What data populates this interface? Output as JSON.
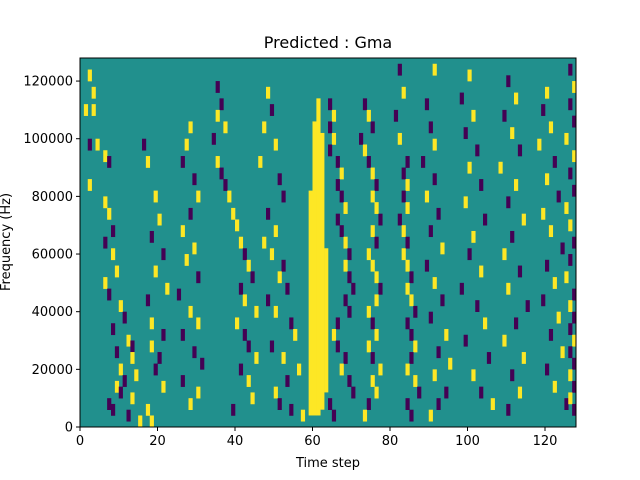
{
  "chart_data": {
    "type": "heatmap",
    "title": "Predicted : Gma",
    "xlabel": "Time step",
    "ylabel": "Frequency (Hz)",
    "xlim": [
      0,
      128
    ],
    "ylim": [
      0,
      128000
    ],
    "xticks": [
      0,
      20,
      40,
      60,
      80,
      100,
      120
    ],
    "yticks": [
      0,
      20000,
      40000,
      60000,
      80000,
      100000,
      120000
    ],
    "grid": false,
    "colormap": "viridis",
    "colors": {
      "background": "#21908d",
      "high": "#fde725",
      "low": "#440154"
    },
    "time_steps": 128,
    "frequency_bins": 64,
    "bin_height_hz": 2000,
    "cells_note": "cells lists [time_step, frequency_bin_index, level]; level 1 = yellow (high), -1 = purple (low); all other cells are the middle (teal) level",
    "band_columns": [
      {
        "t": 59,
        "level": 1,
        "bins": [
          [
            2,
            40
          ]
        ]
      },
      {
        "t": 60,
        "level": 1,
        "bins": [
          [
            2,
            52
          ]
        ]
      },
      {
        "t": 61,
        "level": 1,
        "bins": [
          [
            2,
            56
          ]
        ]
      },
      {
        "t": 62,
        "level": 1,
        "bins": [
          [
            3,
            50
          ]
        ]
      },
      {
        "t": 63,
        "level": 1,
        "bins": [
          [
            6,
            30
          ]
        ]
      }
    ],
    "cells": [
      [
        2,
        61,
        1
      ],
      [
        3,
        58,
        1
      ],
      [
        1,
        55,
        1
      ],
      [
        3,
        55,
        1
      ],
      [
        2,
        49,
        -1
      ],
      [
        4,
        49,
        1
      ],
      [
        6,
        47,
        1
      ],
      [
        7,
        46,
        -1
      ],
      [
        2,
        42,
        1
      ],
      [
        6,
        39,
        1
      ],
      [
        7,
        37,
        1
      ],
      [
        8,
        34,
        -1
      ],
      [
        6,
        32,
        -1
      ],
      [
        8,
        30,
        1
      ],
      [
        9,
        27,
        1
      ],
      [
        6,
        25,
        1
      ],
      [
        7,
        23,
        -1
      ],
      [
        10,
        21,
        1
      ],
      [
        11,
        19,
        -1
      ],
      [
        8,
        17,
        -1
      ],
      [
        12,
        15,
        1
      ],
      [
        13,
        14,
        -1
      ],
      [
        9,
        13,
        -1
      ],
      [
        13,
        12,
        1
      ],
      [
        10,
        10,
        1
      ],
      [
        14,
        9,
        1
      ],
      [
        11,
        8,
        -1
      ],
      [
        9,
        7,
        1
      ],
      [
        10,
        6,
        -1
      ],
      [
        13,
        5,
        1
      ],
      [
        7,
        4,
        -1
      ],
      [
        8,
        3,
        -1
      ],
      [
        12,
        2,
        -1
      ],
      [
        15,
        1,
        1
      ],
      [
        18,
        1,
        1
      ],
      [
        16,
        49,
        -1
      ],
      [
        17,
        46,
        1
      ],
      [
        19,
        40,
        1
      ],
      [
        20,
        36,
        1
      ],
      [
        18,
        33,
        -1
      ],
      [
        21,
        30,
        -1
      ],
      [
        19,
        27,
        1
      ],
      [
        22,
        24,
        1
      ],
      [
        17,
        22,
        -1
      ],
      [
        18,
        18,
        1
      ],
      [
        21,
        16,
        -1
      ],
      [
        18,
        14,
        1
      ],
      [
        20,
        12,
        -1
      ],
      [
        19,
        10,
        -1
      ],
      [
        21,
        7,
        1
      ],
      [
        17,
        3,
        1
      ],
      [
        28,
        52,
        1
      ],
      [
        27,
        49,
        1
      ],
      [
        26,
        46,
        -1
      ],
      [
        29,
        43,
        -1
      ],
      [
        30,
        40,
        1
      ],
      [
        28,
        37,
        -1
      ],
      [
        26,
        34,
        1
      ],
      [
        29,
        31,
        1
      ],
      [
        27,
        29,
        1
      ],
      [
        30,
        26,
        -1
      ],
      [
        25,
        23,
        -1
      ],
      [
        28,
        20,
        1
      ],
      [
        30,
        18,
        1
      ],
      [
        26,
        16,
        -1
      ],
      [
        29,
        13,
        -1
      ],
      [
        31,
        11,
        -1
      ],
      [
        26,
        8,
        -1
      ],
      [
        30,
        6,
        1
      ],
      [
        28,
        4,
        1
      ],
      [
        35,
        59,
        -1
      ],
      [
        36,
        56,
        -1
      ],
      [
        35,
        54,
        1
      ],
      [
        37,
        52,
        1
      ],
      [
        34,
        50,
        -1
      ],
      [
        35,
        46,
        1
      ],
      [
        36,
        44,
        -1
      ],
      [
        37,
        42,
        -1
      ],
      [
        38,
        40,
        1
      ],
      [
        39,
        37,
        1
      ],
      [
        40,
        35,
        1
      ],
      [
        41,
        32,
        1
      ],
      [
        42,
        30,
        -1
      ],
      [
        43,
        28,
        1
      ],
      [
        44,
        26,
        -1
      ],
      [
        41,
        24,
        -1
      ],
      [
        42,
        22,
        1
      ],
      [
        45,
        20,
        1
      ],
      [
        40,
        18,
        1
      ],
      [
        42,
        16,
        -1
      ],
      [
        43,
        14,
        -1
      ],
      [
        45,
        12,
        1
      ],
      [
        41,
        10,
        -1
      ],
      [
        43,
        8,
        1
      ],
      [
        44,
        5,
        1
      ],
      [
        39,
        3,
        -1
      ],
      [
        48,
        58,
        1
      ],
      [
        49,
        55,
        -1
      ],
      [
        47,
        52,
        1
      ],
      [
        50,
        49,
        1
      ],
      [
        46,
        46,
        1
      ],
      [
        51,
        43,
        -1
      ],
      [
        52,
        40,
        -1
      ],
      [
        48,
        37,
        -1
      ],
      [
        50,
        34,
        1
      ],
      [
        47,
        32,
        1
      ],
      [
        49,
        30,
        1
      ],
      [
        52,
        28,
        -1
      ],
      [
        51,
        26,
        1
      ],
      [
        53,
        24,
        -1
      ],
      [
        48,
        22,
        -1
      ],
      [
        50,
        20,
        1
      ],
      [
        54,
        18,
        -1
      ],
      [
        55,
        16,
        1
      ],
      [
        49,
        14,
        -1
      ],
      [
        52,
        12,
        1
      ],
      [
        56,
        10,
        1
      ],
      [
        53,
        8,
        -1
      ],
      [
        50,
        6,
        1
      ],
      [
        51,
        4,
        -1
      ],
      [
        54,
        3,
        -1
      ],
      [
        57,
        2,
        1
      ],
      [
        64,
        56,
        -1
      ],
      [
        65,
        54,
        1
      ],
      [
        64,
        52,
        -1
      ],
      [
        65,
        50,
        1
      ],
      [
        64,
        48,
        -1
      ],
      [
        66,
        46,
        -1
      ],
      [
        67,
        44,
        1
      ],
      [
        66,
        42,
        -1
      ],
      [
        67,
        40,
        -1
      ],
      [
        68,
        38,
        1
      ],
      [
        66,
        36,
        -1
      ],
      [
        67,
        34,
        -1
      ],
      [
        68,
        32,
        1
      ],
      [
        69,
        30,
        -1
      ],
      [
        68,
        28,
        1
      ],
      [
        69,
        26,
        -1
      ],
      [
        70,
        24,
        -1
      ],
      [
        68,
        22,
        -1
      ],
      [
        69,
        20,
        -1
      ],
      [
        66,
        18,
        -1
      ],
      [
        65,
        16,
        1
      ],
      [
        66,
        14,
        -1
      ],
      [
        68,
        12,
        -1
      ],
      [
        67,
        10,
        1
      ],
      [
        69,
        8,
        -1
      ],
      [
        70,
        6,
        -1
      ],
      [
        64,
        4,
        -1
      ],
      [
        65,
        2,
        -1
      ],
      [
        73,
        56,
        -1
      ],
      [
        74,
        54,
        1
      ],
      [
        75,
        52,
        -1
      ],
      [
        72,
        50,
        -1
      ],
      [
        73,
        48,
        1
      ],
      [
        74,
        46,
        -1
      ],
      [
        75,
        44,
        1
      ],
      [
        76,
        42,
        -1
      ],
      [
        75,
        40,
        1
      ],
      [
        76,
        38,
        1
      ],
      [
        77,
        36,
        -1
      ],
      [
        75,
        34,
        1
      ],
      [
        76,
        32,
        -1
      ],
      [
        74,
        30,
        1
      ],
      [
        75,
        28,
        1
      ],
      [
        76,
        26,
        1
      ],
      [
        77,
        24,
        -1
      ],
      [
        76,
        22,
        1
      ],
      [
        74,
        20,
        1
      ],
      [
        75,
        18,
        -1
      ],
      [
        76,
        16,
        1
      ],
      [
        74,
        14,
        1
      ],
      [
        75,
        12,
        -1
      ],
      [
        77,
        10,
        1
      ],
      [
        75,
        8,
        1
      ],
      [
        76,
        6,
        1
      ],
      [
        74,
        4,
        -1
      ],
      [
        73,
        2,
        1
      ],
      [
        82,
        62,
        -1
      ],
      [
        83,
        58,
        1
      ],
      [
        81,
        54,
        -1
      ],
      [
        82,
        50,
        1
      ],
      [
        84,
        46,
        -1
      ],
      [
        83,
        44,
        -1
      ],
      [
        84,
        42,
        1
      ],
      [
        83,
        40,
        -1
      ],
      [
        84,
        38,
        1
      ],
      [
        82,
        36,
        -1
      ],
      [
        83,
        34,
        1
      ],
      [
        84,
        32,
        -1
      ],
      [
        83,
        30,
        1
      ],
      [
        84,
        28,
        1
      ],
      [
        85,
        26,
        -1
      ],
      [
        84,
        24,
        1
      ],
      [
        85,
        22,
        1
      ],
      [
        86,
        20,
        -1
      ],
      [
        84,
        18,
        -1
      ],
      [
        85,
        16,
        -1
      ],
      [
        86,
        14,
        1
      ],
      [
        85,
        12,
        -1
      ],
      [
        84,
        10,
        1
      ],
      [
        86,
        8,
        1
      ],
      [
        87,
        6,
        -1
      ],
      [
        84,
        4,
        -1
      ],
      [
        85,
        2,
        -1
      ],
      [
        91,
        62,
        1
      ],
      [
        89,
        56,
        -1
      ],
      [
        90,
        52,
        -1
      ],
      [
        91,
        49,
        1
      ],
      [
        88,
        46,
        -1
      ],
      [
        91,
        43,
        -1
      ],
      [
        89,
        40,
        1
      ],
      [
        92,
        37,
        -1
      ],
      [
        90,
        34,
        -1
      ],
      [
        93,
        31,
        1
      ],
      [
        89,
        28,
        -1
      ],
      [
        91,
        25,
        1
      ],
      [
        93,
        22,
        -1
      ],
      [
        90,
        19,
        -1
      ],
      [
        94,
        16,
        1
      ],
      [
        92,
        13,
        -1
      ],
      [
        95,
        11,
        1
      ],
      [
        91,
        9,
        1
      ],
      [
        94,
        6,
        -1
      ],
      [
        92,
        4,
        -1
      ],
      [
        90,
        2,
        1
      ],
      [
        100,
        61,
        1
      ],
      [
        98,
        57,
        -1
      ],
      [
        101,
        54,
        1
      ],
      [
        99,
        51,
        -1
      ],
      [
        102,
        48,
        -1
      ],
      [
        100,
        45,
        1
      ],
      [
        103,
        42,
        -1
      ],
      [
        99,
        39,
        1
      ],
      [
        104,
        36,
        -1
      ],
      [
        101,
        33,
        1
      ],
      [
        100,
        30,
        -1
      ],
      [
        103,
        27,
        1
      ],
      [
        98,
        24,
        -1
      ],
      [
        102,
        21,
        -1
      ],
      [
        104,
        18,
        1
      ],
      [
        99,
        15,
        -1
      ],
      [
        105,
        12,
        -1
      ],
      [
        101,
        9,
        1
      ],
      [
        103,
        6,
        -1
      ],
      [
        106,
        4,
        1
      ],
      [
        110,
        60,
        -1
      ],
      [
        112,
        57,
        1
      ],
      [
        109,
        54,
        -1
      ],
      [
        111,
        51,
        1
      ],
      [
        113,
        48,
        -1
      ],
      [
        108,
        45,
        1
      ],
      [
        112,
        42,
        1
      ],
      [
        110,
        39,
        -1
      ],
      [
        114,
        36,
        1
      ],
      [
        111,
        33,
        -1
      ],
      [
        109,
        30,
        1
      ],
      [
        113,
        27,
        -1
      ],
      [
        110,
        24,
        1
      ],
      [
        115,
        21,
        -1
      ],
      [
        112,
        18,
        -1
      ],
      [
        109,
        15,
        1
      ],
      [
        114,
        12,
        1
      ],
      [
        111,
        9,
        -1
      ],
      [
        113,
        6,
        1
      ],
      [
        110,
        3,
        -1
      ],
      [
        120,
        58,
        1
      ],
      [
        119,
        55,
        -1
      ],
      [
        121,
        52,
        1
      ],
      [
        118,
        49,
        1
      ],
      [
        122,
        46,
        -1
      ],
      [
        120,
        43,
        1
      ],
      [
        123,
        40,
        -1
      ],
      [
        119,
        37,
        1
      ],
      [
        121,
        34,
        1
      ],
      [
        124,
        31,
        -1
      ],
      [
        120,
        28,
        -1
      ],
      [
        122,
        25,
        1
      ],
      [
        119,
        22,
        -1
      ],
      [
        123,
        19,
        1
      ],
      [
        121,
        16,
        -1
      ],
      [
        124,
        13,
        1
      ],
      [
        120,
        10,
        -1
      ],
      [
        122,
        7,
        1
      ],
      [
        125,
        4,
        -1
      ],
      [
        126,
        62,
        -1
      ],
      [
        127,
        59,
        1
      ],
      [
        126,
        56,
        -1
      ],
      [
        127,
        53,
        -1
      ],
      [
        125,
        50,
        1
      ],
      [
        127,
        47,
        1
      ],
      [
        126,
        44,
        -1
      ],
      [
        127,
        41,
        -1
      ],
      [
        125,
        38,
        1
      ],
      [
        126,
        35,
        1
      ],
      [
        127,
        32,
        -1
      ],
      [
        126,
        29,
        -1
      ],
      [
        125,
        26,
        1
      ],
      [
        127,
        23,
        -1
      ],
      [
        126,
        21,
        1
      ],
      [
        127,
        19,
        -1
      ],
      [
        126,
        17,
        -1
      ],
      [
        127,
        15,
        1
      ],
      [
        126,
        13,
        -1
      ],
      [
        127,
        11,
        -1
      ],
      [
        126,
        9,
        1
      ],
      [
        127,
        7,
        -1
      ],
      [
        126,
        5,
        1
      ],
      [
        127,
        3,
        -1
      ]
    ]
  }
}
